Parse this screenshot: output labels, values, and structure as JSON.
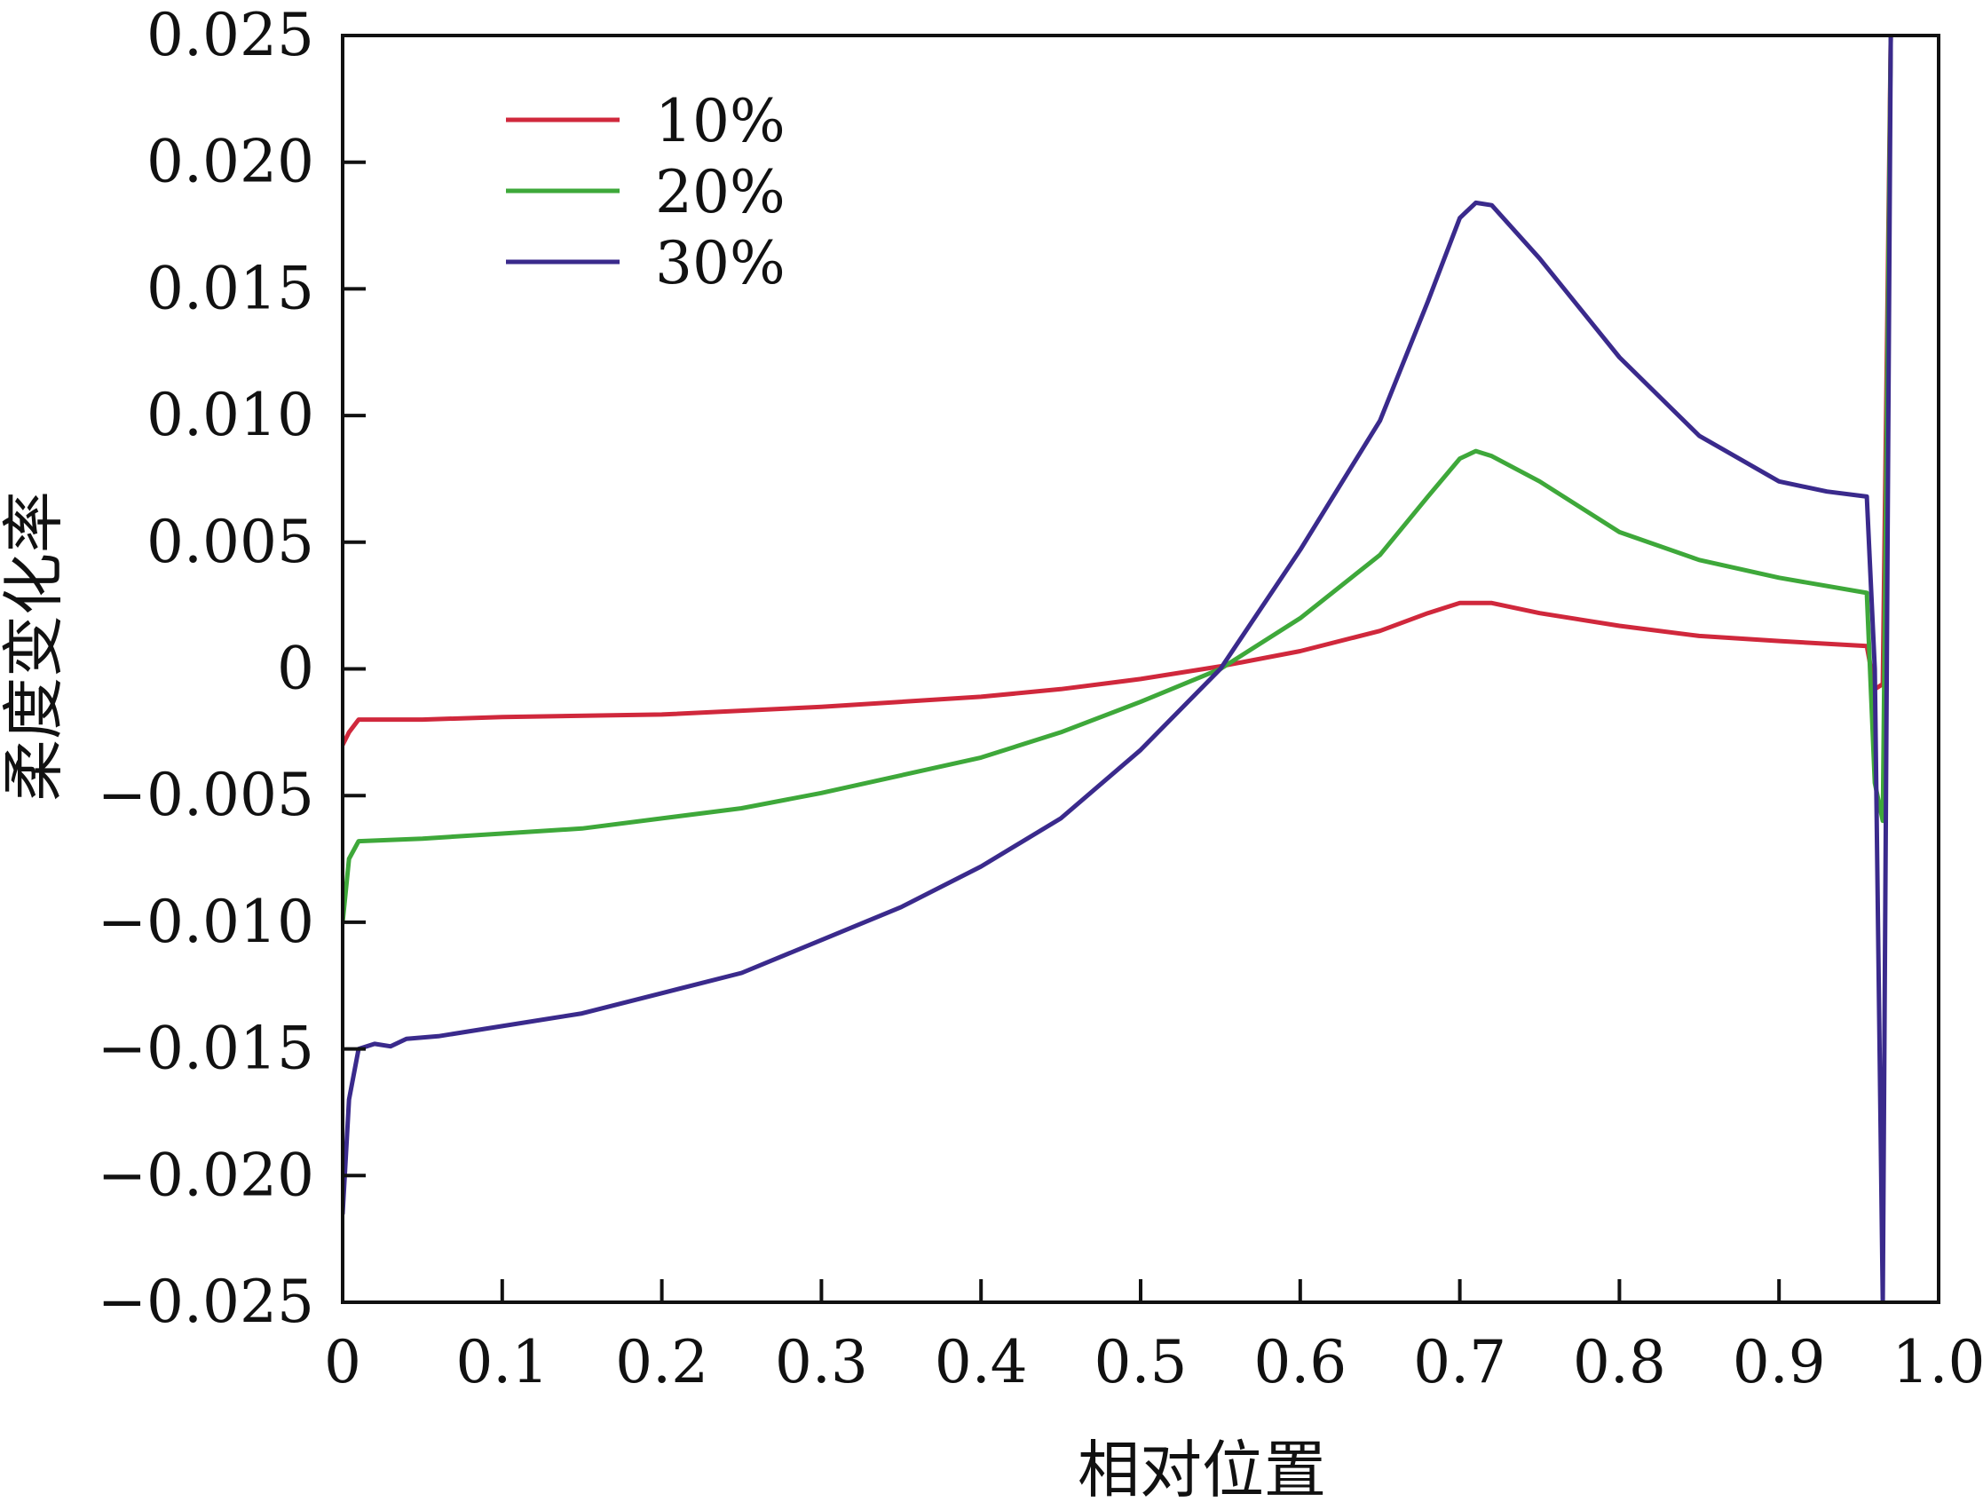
{
  "chart_data": {
    "type": "line",
    "title": "",
    "xlabel": "相对位置",
    "ylabel": "柔度变化率",
    "xlim": [
      0,
      1.0
    ],
    "ylim": [
      -0.025,
      0.025
    ],
    "x_ticks": [
      {
        "value": 0,
        "label": "0"
      },
      {
        "value": 0.1,
        "label": "0.1"
      },
      {
        "value": 0.2,
        "label": "0.2"
      },
      {
        "value": 0.3,
        "label": "0.3"
      },
      {
        "value": 0.4,
        "label": "0.4"
      },
      {
        "value": 0.5,
        "label": "0.5"
      },
      {
        "value": 0.6,
        "label": "0.6"
      },
      {
        "value": 0.7,
        "label": "0.7"
      },
      {
        "value": 0.8,
        "label": "0.8"
      },
      {
        "value": 0.9,
        "label": "0.9"
      },
      {
        "value": 1.0,
        "label": "1.0"
      }
    ],
    "y_ticks": [
      {
        "value": 0.025,
        "label": "0.025"
      },
      {
        "value": 0.02,
        "label": "0.020"
      },
      {
        "value": 0.015,
        "label": "0.015"
      },
      {
        "value": 0.01,
        "label": "0.010"
      },
      {
        "value": 0.005,
        "label": "0.005"
      },
      {
        "value": 0,
        "label": "0"
      },
      {
        "value": -0.005,
        "label": "−0.005"
      },
      {
        "value": -0.01,
        "label": "−0.010"
      },
      {
        "value": -0.015,
        "label": "−0.015"
      },
      {
        "value": -0.02,
        "label": "−0.020"
      },
      {
        "value": -0.025,
        "label": "−0.025"
      }
    ],
    "grid": false,
    "legend_position": "top-left",
    "series": [
      {
        "name": "10%",
        "color": "#d0283c",
        "points": [
          [
            0.0,
            -0.003
          ],
          [
            0.004,
            -0.0025
          ],
          [
            0.01,
            -0.002
          ],
          [
            0.05,
            -0.002
          ],
          [
            0.1,
            -0.0019
          ],
          [
            0.2,
            -0.0018
          ],
          [
            0.3,
            -0.0015
          ],
          [
            0.4,
            -0.0011
          ],
          [
            0.45,
            -0.0008
          ],
          [
            0.5,
            -0.0004
          ],
          [
            0.55,
            0.0001
          ],
          [
            0.6,
            0.0007
          ],
          [
            0.65,
            0.0015
          ],
          [
            0.68,
            0.0022
          ],
          [
            0.7,
            0.0026
          ],
          [
            0.72,
            0.0026
          ],
          [
            0.75,
            0.0022
          ],
          [
            0.8,
            0.0017
          ],
          [
            0.85,
            0.0013
          ],
          [
            0.9,
            0.0011
          ],
          [
            0.955,
            0.0009
          ],
          [
            0.96,
            -0.0008
          ],
          [
            0.965,
            -0.0006
          ],
          [
            0.97,
            0.025
          ]
        ]
      },
      {
        "name": "20%",
        "color": "#3ea83a",
        "points": [
          [
            0.0,
            -0.01
          ],
          [
            0.004,
            -0.0075
          ],
          [
            0.01,
            -0.0068
          ],
          [
            0.05,
            -0.0067
          ],
          [
            0.1,
            -0.0065
          ],
          [
            0.15,
            -0.0063
          ],
          [
            0.2,
            -0.0059
          ],
          [
            0.25,
            -0.0055
          ],
          [
            0.3,
            -0.0049
          ],
          [
            0.35,
            -0.0042
          ],
          [
            0.4,
            -0.0035
          ],
          [
            0.45,
            -0.0025
          ],
          [
            0.5,
            -0.0013
          ],
          [
            0.55,
            0.0
          ],
          [
            0.6,
            0.002
          ],
          [
            0.65,
            0.0045
          ],
          [
            0.68,
            0.0068
          ],
          [
            0.7,
            0.0083
          ],
          [
            0.71,
            0.0086
          ],
          [
            0.72,
            0.0084
          ],
          [
            0.75,
            0.0074
          ],
          [
            0.8,
            0.0054
          ],
          [
            0.85,
            0.0043
          ],
          [
            0.9,
            0.0036
          ],
          [
            0.955,
            0.003
          ],
          [
            0.96,
            -0.0045
          ],
          [
            0.965,
            -0.006
          ],
          [
            0.97,
            0.025
          ]
        ]
      },
      {
        "name": "30%",
        "color": "#3a2a8c",
        "points": [
          [
            0.0,
            -0.0215
          ],
          [
            0.004,
            -0.017
          ],
          [
            0.01,
            -0.015
          ],
          [
            0.02,
            -0.0148
          ],
          [
            0.03,
            -0.0149
          ],
          [
            0.04,
            -0.0146
          ],
          [
            0.06,
            -0.0145
          ],
          [
            0.1,
            -0.0141
          ],
          [
            0.15,
            -0.0136
          ],
          [
            0.2,
            -0.0128
          ],
          [
            0.25,
            -0.012
          ],
          [
            0.3,
            -0.0107
          ],
          [
            0.35,
            -0.0094
          ],
          [
            0.4,
            -0.0078
          ],
          [
            0.45,
            -0.0059
          ],
          [
            0.5,
            -0.0032
          ],
          [
            0.55,
            0.0
          ],
          [
            0.6,
            0.0047
          ],
          [
            0.65,
            0.0098
          ],
          [
            0.68,
            0.0145
          ],
          [
            0.7,
            0.0178
          ],
          [
            0.71,
            0.0184
          ],
          [
            0.72,
            0.0183
          ],
          [
            0.75,
            0.0162
          ],
          [
            0.8,
            0.0123
          ],
          [
            0.85,
            0.0092
          ],
          [
            0.9,
            0.0074
          ],
          [
            0.93,
            0.007
          ],
          [
            0.955,
            0.0068
          ],
          [
            0.96,
            -0.0
          ],
          [
            0.965,
            -0.025
          ],
          [
            0.97,
            0.025
          ]
        ]
      }
    ]
  }
}
